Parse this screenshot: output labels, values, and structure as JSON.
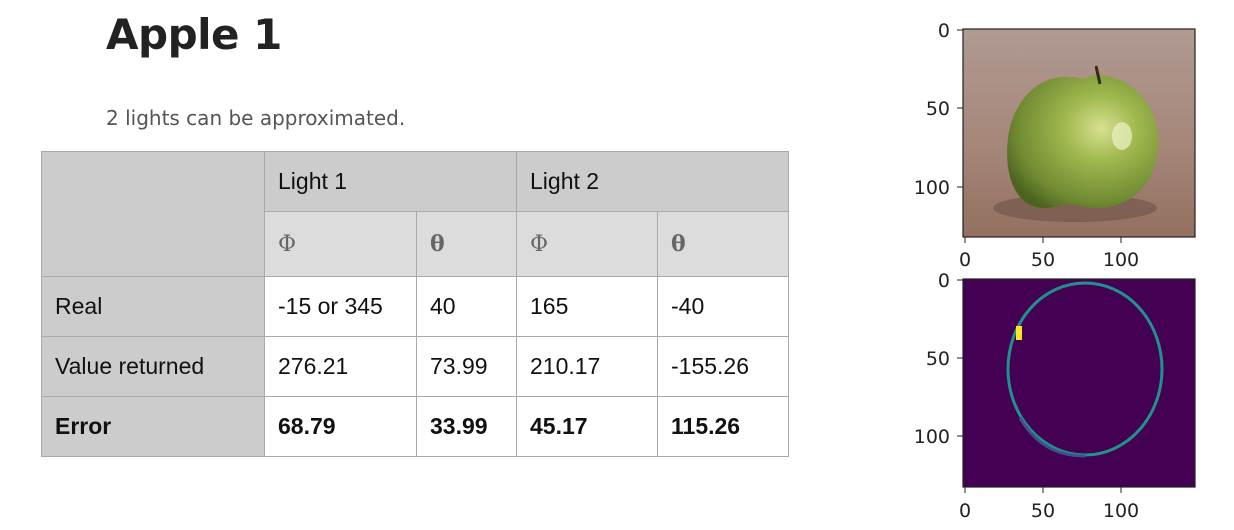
{
  "title": "Apple 1",
  "subtitle": "2 lights can be approximated.",
  "table": {
    "light1": "Light 1",
    "light2": "Light 2",
    "phi": "Φ",
    "theta": "θ",
    "rows": [
      {
        "label": "Real",
        "values": [
          "-15 or 345",
          "40",
          "165",
          "-40"
        ]
      },
      {
        "label": "Value returned",
        "values": [
          "276.21",
          "73.99",
          "210.17",
          "-155.26"
        ]
      },
      {
        "label": "Error",
        "values": [
          "68.79",
          "33.99",
          "45.17",
          "115.26"
        ]
      }
    ]
  },
  "plots": {
    "x_ticks": [
      "0",
      "50",
      "100"
    ],
    "y_ticks": [
      "0",
      "50",
      "100"
    ],
    "photo_colors": {
      "background": "#a8887a",
      "apple": "#8ea645"
    },
    "mask_colors": {
      "background": "#440154",
      "ring": "#21918c",
      "highlight": "#fde725"
    }
  }
}
